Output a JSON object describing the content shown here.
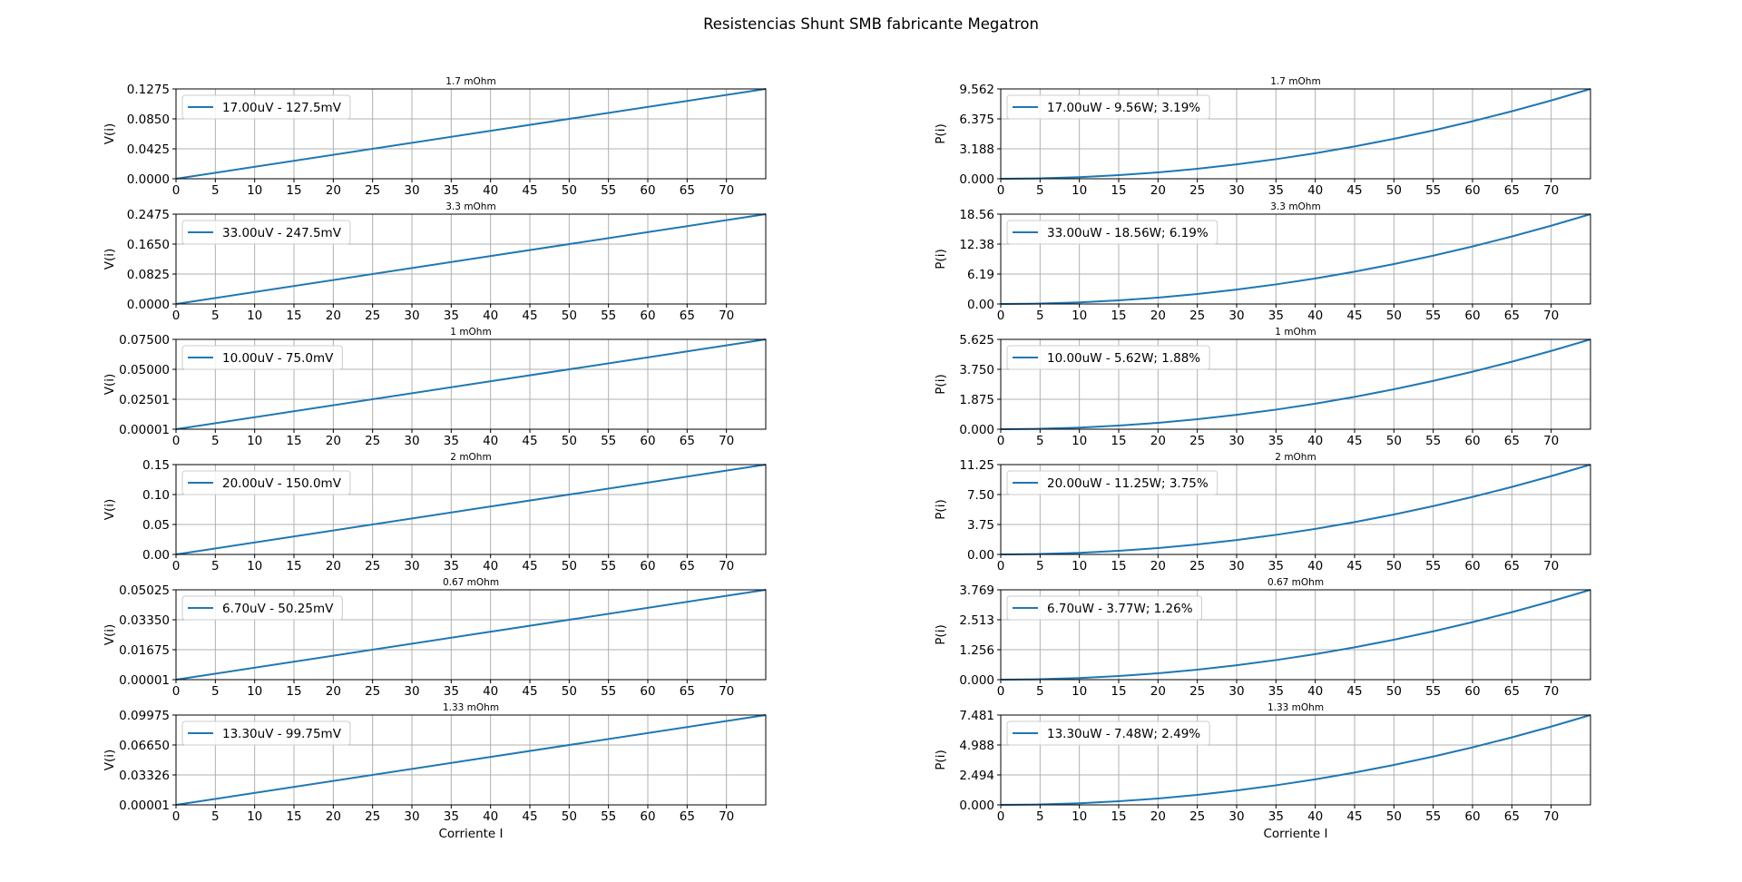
{
  "figure": {
    "title": "Resistencias Shunt SMB fabricante Megatron",
    "line_color": "#1f77b4",
    "grid": true
  },
  "chart_data": [
    {
      "type": "line",
      "title": "1.7 mOhm",
      "xlabel": "",
      "ylabel": "V(i)",
      "xlim": [
        0,
        75
      ],
      "ylim": [
        0,
        0.1275
      ],
      "xticks": [
        "0",
        "5",
        "10",
        "15",
        "20",
        "25",
        "30",
        "35",
        "40",
        "45",
        "50",
        "55",
        "60",
        "65",
        "70"
      ],
      "yticks": [
        "0.0000",
        "0.0425",
        "0.0850",
        "0.1275"
      ],
      "legend_position": "upper-left",
      "series": [
        {
          "name": "17.00uV - 127.5mV",
          "x": [
            0,
            75
          ],
          "y": [
            0,
            0.1275
          ]
        }
      ]
    },
    {
      "type": "line",
      "title": "1.7 mOhm",
      "xlabel": "",
      "ylabel": "P(i)",
      "xlim": [
        0,
        75
      ],
      "ylim": [
        0,
        9.562
      ],
      "xticks": [
        "0",
        "5",
        "10",
        "15",
        "20",
        "25",
        "30",
        "35",
        "40",
        "45",
        "50",
        "55",
        "60",
        "65",
        "70"
      ],
      "yticks": [
        "0.000",
        "3.188",
        "6.375",
        "9.562"
      ],
      "legend_position": "upper-left",
      "series": [
        {
          "name": "17.00uW - 9.56W; 3.19%",
          "x": [
            0,
            5,
            10,
            15,
            20,
            25,
            30,
            35,
            40,
            45,
            50,
            55,
            60,
            65,
            70,
            75
          ],
          "y": [
            0,
            0.0425,
            0.17,
            0.3825,
            0.68,
            1.0625,
            1.53,
            2.0825,
            2.72,
            3.4425,
            4.25,
            5.1425,
            6.12,
            7.1825,
            8.33,
            9.5625
          ]
        }
      ]
    },
    {
      "type": "line",
      "title": "3.3 mOhm",
      "xlabel": "",
      "ylabel": "V(i)",
      "xlim": [
        0,
        75
      ],
      "ylim": [
        0,
        0.2475
      ],
      "xticks": [
        "0",
        "5",
        "10",
        "15",
        "20",
        "25",
        "30",
        "35",
        "40",
        "45",
        "50",
        "55",
        "60",
        "65",
        "70"
      ],
      "yticks": [
        "0.0000",
        "0.0825",
        "0.1650",
        "0.2475"
      ],
      "legend_position": "upper-left",
      "series": [
        {
          "name": "33.00uV - 247.5mV",
          "x": [
            0,
            75
          ],
          "y": [
            0,
            0.2475
          ]
        }
      ]
    },
    {
      "type": "line",
      "title": "3.3 mOhm",
      "xlabel": "",
      "ylabel": "P(i)",
      "xlim": [
        0,
        75
      ],
      "ylim": [
        0,
        18.56
      ],
      "xticks": [
        "0",
        "5",
        "10",
        "15",
        "20",
        "25",
        "30",
        "35",
        "40",
        "45",
        "50",
        "55",
        "60",
        "65",
        "70"
      ],
      "yticks": [
        "0.00",
        "6.19",
        "12.38",
        "18.56"
      ],
      "legend_position": "upper-left",
      "series": [
        {
          "name": "33.00uW - 18.56W; 6.19%",
          "x": [
            0,
            5,
            10,
            15,
            20,
            25,
            30,
            35,
            40,
            45,
            50,
            55,
            60,
            65,
            70,
            75
          ],
          "y": [
            0,
            0.0825,
            0.33,
            0.7425,
            1.32,
            2.0625,
            2.97,
            4.0425,
            5.28,
            6.6825,
            8.25,
            9.9825,
            11.88,
            13.9425,
            16.17,
            18.5625
          ]
        }
      ]
    },
    {
      "type": "line",
      "title": "1 mOhm",
      "xlabel": "",
      "ylabel": "V(i)",
      "xlim": [
        0,
        75
      ],
      "ylim": [
        1e-05,
        0.075
      ],
      "xticks": [
        "0",
        "5",
        "10",
        "15",
        "20",
        "25",
        "30",
        "35",
        "40",
        "45",
        "50",
        "55",
        "60",
        "65",
        "70"
      ],
      "yticks": [
        "0.00001",
        "0.02501",
        "0.05000",
        "0.07500"
      ],
      "legend_position": "upper-left",
      "series": [
        {
          "name": "10.00uV - 75.0mV",
          "x": [
            0,
            75
          ],
          "y": [
            1e-05,
            0.075
          ]
        }
      ]
    },
    {
      "type": "line",
      "title": "1 mOhm",
      "xlabel": "",
      "ylabel": "P(i)",
      "xlim": [
        0,
        75
      ],
      "ylim": [
        0,
        5.625
      ],
      "xticks": [
        "0",
        "5",
        "10",
        "15",
        "20",
        "25",
        "30",
        "35",
        "40",
        "45",
        "50",
        "55",
        "60",
        "65",
        "70"
      ],
      "yticks": [
        "0.000",
        "1.875",
        "3.750",
        "5.625"
      ],
      "legend_position": "upper-left",
      "series": [
        {
          "name": "10.00uW - 5.62W; 1.88%",
          "x": [
            0,
            5,
            10,
            15,
            20,
            25,
            30,
            35,
            40,
            45,
            50,
            55,
            60,
            65,
            70,
            75
          ],
          "y": [
            0,
            0.025,
            0.1,
            0.225,
            0.4,
            0.625,
            0.9,
            1.225,
            1.6,
            2.025,
            2.5,
            3.025,
            3.6,
            4.225,
            4.9,
            5.625
          ]
        }
      ]
    },
    {
      "type": "line",
      "title": "2 mOhm",
      "xlabel": "",
      "ylabel": "V(i)",
      "xlim": [
        0,
        75
      ],
      "ylim": [
        0,
        0.15
      ],
      "xticks": [
        "0",
        "5",
        "10",
        "15",
        "20",
        "25",
        "30",
        "35",
        "40",
        "45",
        "50",
        "55",
        "60",
        "65",
        "70"
      ],
      "yticks": [
        "0.00",
        "0.05",
        "0.10",
        "0.15"
      ],
      "legend_position": "upper-left",
      "series": [
        {
          "name": "20.00uV - 150.0mV",
          "x": [
            0,
            75
          ],
          "y": [
            0,
            0.15
          ]
        }
      ]
    },
    {
      "type": "line",
      "title": "2 mOhm",
      "xlabel": "",
      "ylabel": "P(i)",
      "xlim": [
        0,
        75
      ],
      "ylim": [
        0,
        11.25
      ],
      "xticks": [
        "0",
        "5",
        "10",
        "15",
        "20",
        "25",
        "30",
        "35",
        "40",
        "45",
        "50",
        "55",
        "60",
        "65",
        "70"
      ],
      "yticks": [
        "0.00",
        "3.75",
        "7.50",
        "11.25"
      ],
      "legend_position": "upper-left",
      "series": [
        {
          "name": "20.00uW - 11.25W; 3.75%",
          "x": [
            0,
            5,
            10,
            15,
            20,
            25,
            30,
            35,
            40,
            45,
            50,
            55,
            60,
            65,
            70,
            75
          ],
          "y": [
            0,
            0.05,
            0.2,
            0.45,
            0.8,
            1.25,
            1.8,
            2.45,
            3.2,
            4.05,
            5,
            6.05,
            7.2,
            8.45,
            9.8,
            11.25
          ]
        }
      ]
    },
    {
      "type": "line",
      "title": "0.67 mOhm",
      "xlabel": "",
      "ylabel": "V(i)",
      "xlim": [
        0,
        75
      ],
      "ylim": [
        1e-05,
        0.05025
      ],
      "xticks": [
        "0",
        "5",
        "10",
        "15",
        "20",
        "25",
        "30",
        "35",
        "40",
        "45",
        "50",
        "55",
        "60",
        "65",
        "70"
      ],
      "yticks": [
        "0.00001",
        "0.01675",
        "0.03350",
        "0.05025"
      ],
      "legend_position": "upper-left",
      "series": [
        {
          "name": "6.70uV - 50.25mV",
          "x": [
            0,
            75
          ],
          "y": [
            1e-05,
            0.05025
          ]
        }
      ]
    },
    {
      "type": "line",
      "title": "0.67 mOhm",
      "xlabel": "",
      "ylabel": "P(i)",
      "xlim": [
        0,
        75
      ],
      "ylim": [
        0,
        3.769
      ],
      "xticks": [
        "0",
        "5",
        "10",
        "15",
        "20",
        "25",
        "30",
        "35",
        "40",
        "45",
        "50",
        "55",
        "60",
        "65",
        "70"
      ],
      "yticks": [
        "0.000",
        "1.256",
        "2.513",
        "3.769"
      ],
      "legend_position": "upper-left",
      "series": [
        {
          "name": "6.70uW - 3.77W; 1.26%",
          "x": [
            0,
            5,
            10,
            15,
            20,
            25,
            30,
            35,
            40,
            45,
            50,
            55,
            60,
            65,
            70,
            75
          ],
          "y": [
            0,
            0.01675,
            0.067,
            0.15075,
            0.268,
            0.41875,
            0.603,
            0.82075,
            1.072,
            1.35675,
            1.675,
            2.02675,
            2.412,
            2.83075,
            3.283,
            3.76875
          ]
        }
      ]
    },
    {
      "type": "line",
      "title": "1.33 mOhm",
      "xlabel": "Corriente I",
      "ylabel": "V(i)",
      "xlim": [
        0,
        75
      ],
      "ylim": [
        1e-05,
        0.09975
      ],
      "xticks": [
        "0",
        "5",
        "10",
        "15",
        "20",
        "25",
        "30",
        "35",
        "40",
        "45",
        "50",
        "55",
        "60",
        "65",
        "70"
      ],
      "yticks": [
        "0.00001",
        "0.03326",
        "0.06650",
        "0.09975"
      ],
      "legend_position": "upper-left",
      "series": [
        {
          "name": "13.30uV - 99.75mV",
          "x": [
            0,
            75
          ],
          "y": [
            1e-05,
            0.09975
          ]
        }
      ]
    },
    {
      "type": "line",
      "title": "1.33 mOhm",
      "xlabel": "Corriente I",
      "ylabel": "P(i)",
      "xlim": [
        0,
        75
      ],
      "ylim": [
        0,
        7.481
      ],
      "xticks": [
        "0",
        "5",
        "10",
        "15",
        "20",
        "25",
        "30",
        "35",
        "40",
        "45",
        "50",
        "55",
        "60",
        "65",
        "70"
      ],
      "yticks": [
        "0.000",
        "2.494",
        "4.988",
        "7.481"
      ],
      "legend_position": "upper-left",
      "series": [
        {
          "name": "13.30uW - 7.48W; 2.49%",
          "x": [
            0,
            5,
            10,
            15,
            20,
            25,
            30,
            35,
            40,
            45,
            50,
            55,
            60,
            65,
            70,
            75
          ],
          "y": [
            0,
            0.03325,
            0.133,
            0.29925,
            0.532,
            0.83125,
            1.197,
            1.62925,
            2.128,
            2.69325,
            3.325,
            4.02325,
            4.788,
            5.61925,
            6.517,
            7.48125
          ]
        }
      ]
    }
  ]
}
